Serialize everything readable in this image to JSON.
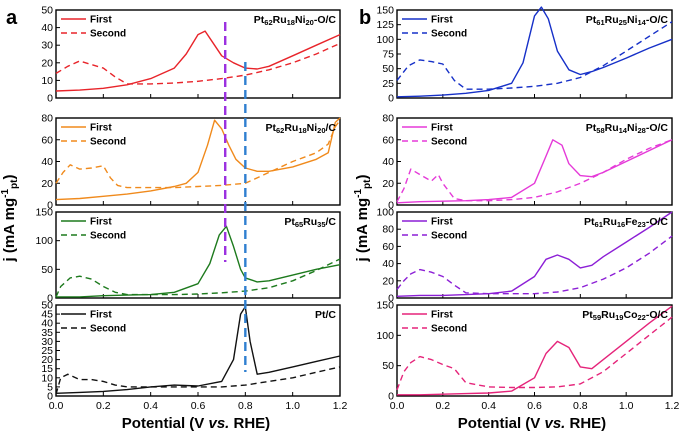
{
  "labels": {
    "panel_a": "a",
    "panel_b": "b",
    "ylabel_a": "j (mA mg",
    "ylabel_b": "j (mA mg",
    "ylabel_sup": "-1",
    "ylabel_sub": "pt",
    "ylabel_close": ")",
    "xlabel_a_pre": "Potential (V ",
    "xlabel_a_it": "vs.",
    "xlabel_a_post": " RHE)",
    "xlabel_b_pre": "Potential (V ",
    "xlabel_b_it": "vs.",
    "xlabel_b_post": " RHE)"
  },
  "colors": {
    "red": "#e8242a",
    "orange": "#f08a1c",
    "green": "#1d7a1d",
    "black": "#111111",
    "blue": "#1630c8",
    "magenta": "#e53ad8",
    "purple": "#8c1fd6",
    "pink": "#e5247a",
    "vline_purple": "#9b30e0",
    "vline_blue": "#2f7fd0"
  },
  "chart_data": [
    {
      "type": "line",
      "panel": "a",
      "subtitle": "Pt62Ru18Ni20-O/C",
      "color": "#e8242a",
      "xlim": [
        0,
        1.2
      ],
      "ylim": [
        0,
        50
      ],
      "yticks": [
        0,
        10,
        20,
        30,
        40,
        50
      ],
      "xticks": [],
      "legend": [
        "First",
        "Second"
      ],
      "legend_placement": "top-left",
      "series": [
        {
          "name": "First",
          "style": "solid",
          "x": [
            0.0,
            0.1,
            0.2,
            0.3,
            0.4,
            0.5,
            0.55,
            0.6,
            0.63,
            0.66,
            0.7,
            0.75,
            0.8,
            0.85,
            0.9,
            1.0,
            1.1,
            1.2
          ],
          "y": [
            4,
            4.5,
            5.5,
            7.5,
            11,
            17,
            25,
            36,
            38,
            32,
            24,
            20,
            17,
            16.5,
            18,
            24,
            30,
            36
          ]
        },
        {
          "name": "Second",
          "style": "dashed",
          "x": [
            0.0,
            0.05,
            0.1,
            0.15,
            0.2,
            0.25,
            0.3,
            0.4,
            0.5,
            0.6,
            0.7,
            0.8,
            0.9,
            1.0,
            1.1,
            1.2
          ],
          "y": [
            14,
            18,
            21,
            19,
            17,
            12,
            8,
            8,
            8.5,
            9.5,
            11,
            13,
            16,
            20,
            25,
            31
          ]
        }
      ]
    },
    {
      "type": "line",
      "panel": "a",
      "subtitle": "Pt62Ru18Ni20/C",
      "color": "#f08a1c",
      "xlim": [
        0,
        1.2
      ],
      "ylim": [
        0,
        80
      ],
      "yticks": [
        0,
        20,
        40,
        60,
        80
      ],
      "xticks": [],
      "legend": [
        "First",
        "Second"
      ],
      "legend_placement": "top-left",
      "series": [
        {
          "name": "First",
          "style": "solid",
          "x": [
            0.0,
            0.1,
            0.2,
            0.3,
            0.4,
            0.5,
            0.55,
            0.6,
            0.64,
            0.67,
            0.7,
            0.73,
            0.76,
            0.8,
            0.85,
            0.9,
            1.0,
            1.1,
            1.15,
            1.18,
            1.2
          ],
          "y": [
            5,
            6,
            8,
            10,
            13,
            17,
            20,
            30,
            55,
            78,
            70,
            55,
            42,
            34,
            31,
            31,
            35,
            42,
            48,
            76,
            80
          ]
        },
        {
          "name": "Second",
          "style": "dashed",
          "x": [
            0.0,
            0.03,
            0.06,
            0.1,
            0.15,
            0.2,
            0.23,
            0.26,
            0.3,
            0.4,
            0.5,
            0.6,
            0.7,
            0.8,
            0.9,
            1.0,
            1.1,
            1.15,
            1.18,
            1.2
          ],
          "y": [
            20,
            30,
            37,
            33,
            34,
            36,
            25,
            18,
            16,
            16,
            16,
            17,
            18,
            20,
            30,
            40,
            48,
            56,
            72,
            78
          ]
        }
      ]
    },
    {
      "type": "line",
      "panel": "a",
      "subtitle": "Pt65Ru35/C",
      "color": "#1d7a1d",
      "xlim": [
        0,
        1.2
      ],
      "ylim": [
        0,
        150
      ],
      "yticks": [
        0,
        50,
        100,
        150
      ],
      "xticks": [],
      "legend": [
        "First",
        "Second"
      ],
      "legend_placement": "top-left",
      "series": [
        {
          "name": "First",
          "style": "solid",
          "x": [
            0.0,
            0.1,
            0.2,
            0.3,
            0.4,
            0.5,
            0.6,
            0.65,
            0.69,
            0.72,
            0.75,
            0.78,
            0.8,
            0.85,
            0.9,
            1.0,
            1.1,
            1.2
          ],
          "y": [
            2,
            2,
            4,
            5,
            6,
            10,
            25,
            60,
            110,
            125,
            90,
            50,
            35,
            28,
            30,
            40,
            50,
            58
          ]
        },
        {
          "name": "Second",
          "style": "dashed",
          "x": [
            0.0,
            0.02,
            0.06,
            0.1,
            0.15,
            0.2,
            0.25,
            0.3,
            0.4,
            0.5,
            0.6,
            0.7,
            0.8,
            0.9,
            1.0,
            1.1,
            1.2
          ],
          "y": [
            2,
            20,
            35,
            38,
            33,
            20,
            10,
            6,
            6,
            6,
            7,
            9,
            12,
            18,
            30,
            48,
            68
          ]
        }
      ]
    },
    {
      "type": "line",
      "panel": "a",
      "subtitle": "Pt/C",
      "color": "#111111",
      "xlim": [
        0,
        1.2
      ],
      "ylim": [
        0,
        50
      ],
      "yticks": [
        0,
        5,
        10,
        15,
        20,
        25,
        30,
        35,
        40,
        45,
        50
      ],
      "xticks": [
        0.0,
        0.2,
        0.4,
        0.6,
        0.8,
        1.0,
        1.2
      ],
      "legend": [
        "First",
        "Second"
      ],
      "legend_placement": "top-left",
      "series": [
        {
          "name": "First",
          "style": "solid",
          "x": [
            0.0,
            0.1,
            0.2,
            0.3,
            0.4,
            0.5,
            0.6,
            0.7,
            0.75,
            0.78,
            0.8,
            0.82,
            0.85,
            0.9,
            1.0,
            1.1,
            1.2
          ],
          "y": [
            1.5,
            2,
            2.5,
            3.5,
            5,
            6,
            5.5,
            8,
            20,
            45,
            49,
            30,
            12,
            13,
            16,
            19,
            22
          ]
        },
        {
          "name": "Second",
          "style": "dashed",
          "x": [
            0.0,
            0.02,
            0.05,
            0.1,
            0.15,
            0.2,
            0.25,
            0.3,
            0.4,
            0.5,
            0.6,
            0.7,
            0.8,
            0.9,
            1.0,
            1.1,
            1.2
          ],
          "y": [
            1,
            10,
            12,
            9,
            9,
            8,
            6,
            5,
            5,
            5,
            5,
            5,
            6,
            8,
            10,
            13,
            16
          ]
        }
      ]
    },
    {
      "type": "line",
      "panel": "b",
      "subtitle": "Pt61Ru25Ni14-O/C",
      "color": "#1630c8",
      "xlim": [
        0,
        1.2
      ],
      "ylim": [
        0,
        150
      ],
      "yticks": [
        0,
        25,
        50,
        75,
        100,
        125,
        150
      ],
      "xticks": [],
      "legend": [
        "First",
        "Second"
      ],
      "legend_placement": "top-left",
      "series": [
        {
          "name": "First",
          "style": "solid",
          "x": [
            0.0,
            0.1,
            0.2,
            0.3,
            0.4,
            0.5,
            0.55,
            0.6,
            0.63,
            0.66,
            0.7,
            0.75,
            0.8,
            0.85,
            0.9,
            1.0,
            1.1,
            1.2
          ],
          "y": [
            2,
            3,
            5,
            8,
            13,
            25,
            60,
            140,
            155,
            135,
            80,
            48,
            40,
            45,
            52,
            68,
            85,
            100
          ]
        },
        {
          "name": "Second",
          "style": "dashed",
          "x": [
            0.0,
            0.05,
            0.1,
            0.15,
            0.2,
            0.25,
            0.3,
            0.4,
            0.5,
            0.6,
            0.7,
            0.8,
            0.9,
            1.0,
            1.1,
            1.2
          ],
          "y": [
            30,
            55,
            65,
            62,
            58,
            30,
            15,
            15,
            17,
            20,
            25,
            35,
            55,
            80,
            105,
            130
          ]
        }
      ]
    },
    {
      "type": "line",
      "panel": "b",
      "subtitle": "Pt58Ru14Ni28-O/C",
      "color": "#e53ad8",
      "xlim": [
        0,
        1.2
      ],
      "ylim": [
        0,
        80
      ],
      "yticks": [
        0,
        20,
        40,
        60,
        80
      ],
      "xticks": [],
      "legend": [
        "First",
        "Second"
      ],
      "legend_placement": "top-left",
      "series": [
        {
          "name": "First",
          "style": "solid",
          "x": [
            0.0,
            0.1,
            0.2,
            0.3,
            0.4,
            0.5,
            0.6,
            0.65,
            0.68,
            0.72,
            0.75,
            0.8,
            0.85,
            0.9,
            1.0,
            1.1,
            1.2
          ],
          "y": [
            2,
            3,
            3.5,
            4,
            5,
            7,
            20,
            45,
            60,
            55,
            38,
            27,
            26,
            30,
            40,
            50,
            60
          ]
        },
        {
          "name": "Second",
          "style": "dashed",
          "x": [
            0.0,
            0.03,
            0.06,
            0.1,
            0.15,
            0.18,
            0.2,
            0.25,
            0.3,
            0.4,
            0.5,
            0.6,
            0.7,
            0.8,
            0.9,
            1.0,
            1.1,
            1.2
          ],
          "y": [
            3,
            15,
            33,
            28,
            22,
            28,
            20,
            6,
            4,
            4,
            5,
            7,
            12,
            20,
            30,
            42,
            52,
            60
          ]
        }
      ]
    },
    {
      "type": "line",
      "panel": "b",
      "subtitle": "Pt61Ru16Fe23-O/C",
      "color": "#8c1fd6",
      "xlim": [
        0,
        1.2
      ],
      "ylim": [
        0,
        100
      ],
      "yticks": [
        0,
        20,
        40,
        60,
        80,
        100
      ],
      "xticks": [],
      "legend": [
        "First",
        "Second"
      ],
      "legend_placement": "top-left",
      "series": [
        {
          "name": "First",
          "style": "solid",
          "x": [
            0.0,
            0.1,
            0.2,
            0.3,
            0.4,
            0.5,
            0.6,
            0.65,
            0.7,
            0.75,
            0.8,
            0.85,
            0.9,
            1.0,
            1.1,
            1.2
          ],
          "y": [
            2,
            3,
            3,
            4,
            5,
            8,
            25,
            45,
            50,
            45,
            35,
            38,
            48,
            65,
            82,
            100
          ]
        },
        {
          "name": "Second",
          "style": "dashed",
          "x": [
            0.0,
            0.03,
            0.06,
            0.1,
            0.15,
            0.2,
            0.25,
            0.3,
            0.4,
            0.5,
            0.6,
            0.7,
            0.8,
            0.9,
            1.0,
            1.1,
            1.2
          ],
          "y": [
            10,
            20,
            28,
            33,
            30,
            25,
            15,
            6,
            5,
            5,
            5,
            7,
            12,
            22,
            35,
            52,
            72
          ]
        }
      ]
    },
    {
      "type": "line",
      "panel": "b",
      "subtitle": "Pt59Ru19Co22-O/C",
      "color": "#e5247a",
      "xlim": [
        0,
        1.2
      ],
      "ylim": [
        0,
        150
      ],
      "yticks": [
        0,
        50,
        100,
        150
      ],
      "xticks": [
        0.0,
        0.2,
        0.4,
        0.6,
        0.8,
        1.0,
        1.2
      ],
      "legend": [
        "First",
        "Second"
      ],
      "legend_placement": "top-left",
      "series": [
        {
          "name": "First",
          "style": "solid",
          "x": [
            0.0,
            0.1,
            0.2,
            0.3,
            0.4,
            0.5,
            0.6,
            0.65,
            0.7,
            0.75,
            0.8,
            0.85,
            0.9,
            1.0,
            1.1,
            1.2
          ],
          "y": [
            2,
            2,
            3,
            4,
            5,
            8,
            30,
            70,
            90,
            80,
            48,
            45,
            60,
            90,
            120,
            148
          ]
        },
        {
          "name": "Second",
          "style": "dashed",
          "x": [
            0.0,
            0.03,
            0.06,
            0.1,
            0.15,
            0.2,
            0.25,
            0.3,
            0.4,
            0.5,
            0.6,
            0.7,
            0.8,
            0.9,
            1.0,
            1.1,
            1.2
          ],
          "y": [
            10,
            40,
            55,
            65,
            60,
            52,
            45,
            22,
            15,
            14,
            14,
            15,
            20,
            40,
            70,
            100,
            130
          ]
        }
      ]
    }
  ],
  "reference_lines": [
    {
      "color": "#9b30e0",
      "x": 0.715,
      "style": "dashed"
    },
    {
      "color": "#2f7fd0",
      "x": 0.8,
      "style": "dashed"
    }
  ]
}
